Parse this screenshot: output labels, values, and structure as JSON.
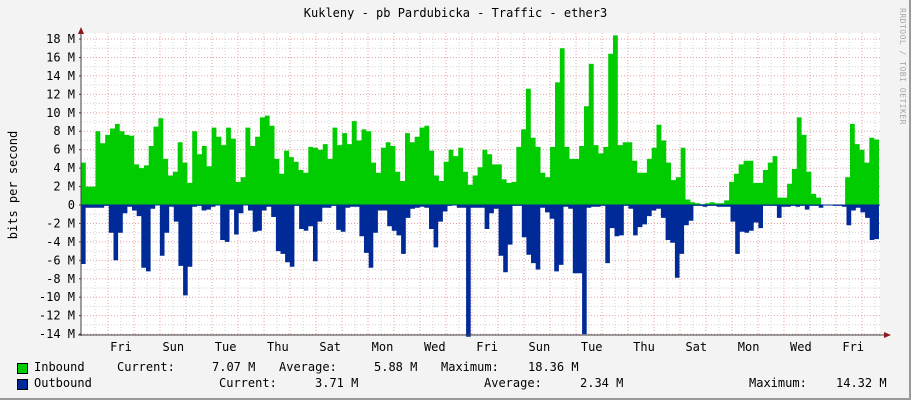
{
  "chart_data": {
    "type": "area",
    "title": "Kukleny - pb Pardubicka - Traffic - ether3",
    "xlabel": "",
    "ylabel": "bits per second",
    "ylim": [
      -14000000,
      18000000
    ],
    "y_ticks": [
      "18 M",
      "16 M",
      "14 M",
      "12 M",
      "10 M",
      "8 M",
      "6 M",
      "4 M",
      "2 M",
      "0",
      "-2 M",
      "-4 M",
      "-6 M",
      "-8 M",
      "-10 M",
      "-12 M",
      "-14 M"
    ],
    "x_ticks": [
      "Fri",
      "Sun",
      "Tue",
      "Thu",
      "Sat",
      "Mon",
      "Wed",
      "Fri",
      "Sun",
      "Tue",
      "Thu",
      "Sat",
      "Mon",
      "Wed",
      "Fri"
    ],
    "grid": true,
    "legend_position": "bottom",
    "series": [
      {
        "name": "Inbound",
        "color": "#00cc00",
        "unit": "M",
        "values": [
          4.6,
          2.0,
          2.0,
          8.0,
          6.7,
          7.6,
          8.3,
          8.8,
          8.0,
          7.6,
          7.5,
          4.4,
          4.0,
          4.3,
          6.4,
          8.5,
          9.4,
          5.0,
          3.2,
          3.6,
          6.8,
          4.6,
          2.4,
          8.0,
          5.5,
          6.4,
          4.2,
          8.4,
          7.4,
          6.5,
          8.4,
          7.2,
          2.5,
          3.0,
          8.4,
          6.4,
          7.4,
          9.5,
          9.7,
          8.6,
          5.0,
          3.4,
          5.9,
          5.2,
          4.7,
          3.8,
          3.5,
          6.3,
          6.2,
          6.0,
          6.6,
          5.0,
          8.4,
          6.5,
          7.8,
          6.6,
          9.1,
          7.0,
          8.2,
          8.0,
          4.6,
          3.5,
          6.2,
          6.8,
          6.4,
          3.6,
          2.6,
          7.8,
          6.8,
          7.4,
          8.4,
          8.6,
          5.9,
          3.2,
          2.6,
          4.7,
          6.0,
          5.3,
          6.2,
          3.6,
          2.2,
          3.2,
          4.1,
          6.0,
          5.5,
          4.4,
          4.4,
          2.8,
          2.4,
          2.5,
          6.3,
          8.2,
          12.6,
          7.3,
          6.3,
          3.5,
          3.0,
          6.3,
          13.3,
          17.0,
          6.3,
          5.0,
          5.0,
          6.4,
          10.7,
          15.3,
          6.5,
          5.6,
          6.3,
          16.4,
          18.4,
          6.5,
          6.8,
          6.8,
          4.8,
          3.5,
          3.5,
          5.0,
          6.2,
          8.7,
          7.0,
          4.6,
          2.7,
          3.0,
          6.2,
          0.6,
          0.3,
          0.2,
          0.1,
          0.2,
          0.3,
          0.2,
          0.2,
          0.5,
          2.5,
          3.4,
          4.4,
          4.8,
          4.8,
          2.4,
          2.4,
          3.8,
          4.6,
          5.3,
          0.8,
          0.8,
          2.3,
          3.9,
          9.5,
          7.6,
          3.6,
          1.2,
          0.8,
          0,
          0,
          0,
          0,
          0,
          3.0,
          8.8,
          6.6,
          6.0,
          4.6,
          7.3,
          7.1
        ],
        "current": "7.07 M",
        "average": "5.88 M",
        "maximum": "18.36 M"
      },
      {
        "name": "Outbound",
        "color": "#002a97",
        "unit": "M",
        "values": [
          6.4,
          0.3,
          0.3,
          0.3,
          0.3,
          0.1,
          3.0,
          6.0,
          3.0,
          0.9,
          0.2,
          0.6,
          1.2,
          6.8,
          7.2,
          0.4,
          0,
          5.5,
          3.0,
          0.2,
          1.8,
          6.6,
          9.8,
          6.7,
          0.2,
          0.1,
          0.6,
          0.5,
          0.2,
          0,
          3.8,
          4.0,
          0.5,
          3.2,
          0.9,
          0,
          0.6,
          2.9,
          2.8,
          0.6,
          0.2,
          1.3,
          5.0,
          5.3,
          6.2,
          6.7,
          0.1,
          2.6,
          2.8,
          2.3,
          6.1,
          1.8,
          0.3,
          0.3,
          0.1,
          2.7,
          2.9,
          0.3,
          0.2,
          0.2,
          3.4,
          5.2,
          6.8,
          3.0,
          0.6,
          0.6,
          2.3,
          2.8,
          3.3,
          5.3,
          1.4,
          0.4,
          0.3,
          0.2,
          0.3,
          2.6,
          4.6,
          1.8,
          0.7,
          0.1,
          0,
          0.3,
          0.3,
          14.3,
          0.3,
          0.3,
          0.3,
          2.6,
          0.9,
          0.4,
          5.5,
          7.3,
          4.3,
          0.1,
          0.1,
          3.5,
          5.4,
          6.3,
          7.0,
          0.3,
          0.8,
          1.5,
          7.2,
          6.5,
          0.2,
          0.4,
          7.4,
          7.4,
          14.0,
          0.3,
          0.2,
          0.2,
          0.1,
          6.3,
          2.5,
          3.4,
          3.3,
          0.1,
          0.4,
          3.3,
          2.4,
          2.1,
          1.2,
          0.6,
          0.4,
          1.4,
          3.8,
          4.1,
          7.9,
          5.3,
          2.2,
          1.7,
          0.1,
          0.1,
          0.2,
          0.1,
          0.1,
          0.2,
          0.2,
          0.2,
          1.8,
          5.3,
          2.9,
          3.0,
          2.8,
          1.9,
          2.5,
          0.1,
          0.1,
          0.1,
          1.4,
          0.2,
          0.2,
          0.1,
          0.2,
          0.1,
          0.5,
          0.1,
          0.1,
          0.3,
          0,
          0,
          0.1,
          0.1,
          0.2,
          2.2,
          0.6,
          0.3,
          0.8,
          1.4,
          3.8,
          3.7
        ],
        "current": "3.71 M",
        "average": "2.34 M",
        "maximum": "14.32 M"
      }
    ]
  },
  "header": {
    "title": "Kukleny - pb Pardubicka - Traffic - ether3"
  },
  "watermark": "RRDTOOL / TOBI OETIKER",
  "axis": {
    "ylabel": "bits per second"
  },
  "legend": {
    "inbound": {
      "label": "Inbound",
      "current_label": "Current:",
      "current": "7.07 M",
      "average_label": "Average:",
      "average": "5.88 M",
      "maximum_label": "Maximum:",
      "maximum": "18.36 M",
      "color": "#00cc00"
    },
    "outbound": {
      "label": "Outbound",
      "current_label": "Current:",
      "current": "3.71 M",
      "average_label": "Average:",
      "average": "2.34 M",
      "maximum_label": "Maximum:",
      "maximum": "14.32 M",
      "color": "#002a97"
    }
  }
}
